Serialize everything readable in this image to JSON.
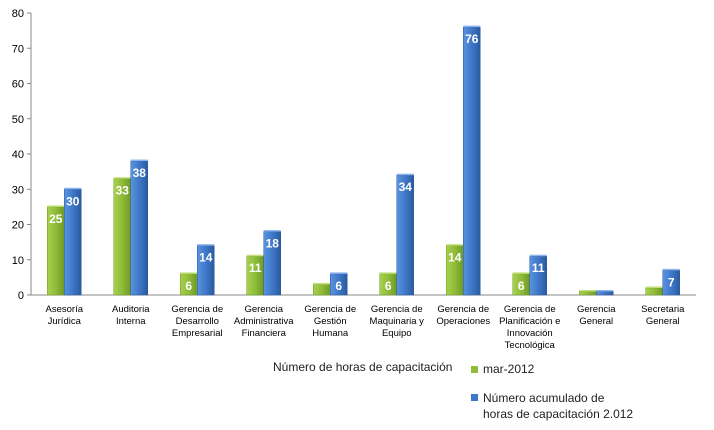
{
  "chart_data": {
    "type": "bar",
    "categories": [
      [
        "Asesoría",
        "Jurídica"
      ],
      [
        "Auditoria",
        "Interna"
      ],
      [
        "Gerencia de",
        "Desarrollo",
        "Empresarial"
      ],
      [
        "Gerencia",
        "Administrativa",
        "Financiera"
      ],
      [
        "Gerencia de",
        "Gestión",
        "Humana"
      ],
      [
        "Gerencia de",
        "Maquinaria y",
        "Equipo"
      ],
      [
        "Gerencia de",
        "Operaciones"
      ],
      [
        "Gerencia de",
        "Planificación e",
        "Innovación",
        "Tecnológica"
      ],
      [
        "Gerencia",
        "General"
      ],
      [
        "Secretaria",
        "General"
      ]
    ],
    "series": [
      {
        "name": "mar-2012",
        "color": "#8fbc3a",
        "values": [
          25,
          33,
          6,
          11,
          3,
          6,
          14,
          6,
          1,
          2
        ],
        "labels": [
          "25",
          "33",
          "6",
          "11",
          "",
          "6",
          "14",
          "6",
          "",
          ""
        ]
      },
      {
        "name": "Número acumulado de horas de capacitación 2.012",
        "color": "#3f78c8",
        "values": [
          30,
          38,
          14,
          18,
          6,
          34,
          76,
          11,
          1,
          7
        ],
        "labels": [
          "30",
          "38",
          "14",
          "18",
          "6",
          "34",
          "76",
          "11",
          "",
          "7"
        ]
      }
    ],
    "ylim": [
      0,
      80
    ],
    "yticks": [
      0,
      10,
      20,
      30,
      40,
      50,
      60,
      70,
      80
    ],
    "grid": false,
    "legend_position": "bottom"
  },
  "legend": {
    "title": "Número de horas de capacitación",
    "item1": "mar-2012",
    "item2_line1": "Número acumulado de",
    "item2_line2": "horas de capacitación 2.012"
  }
}
